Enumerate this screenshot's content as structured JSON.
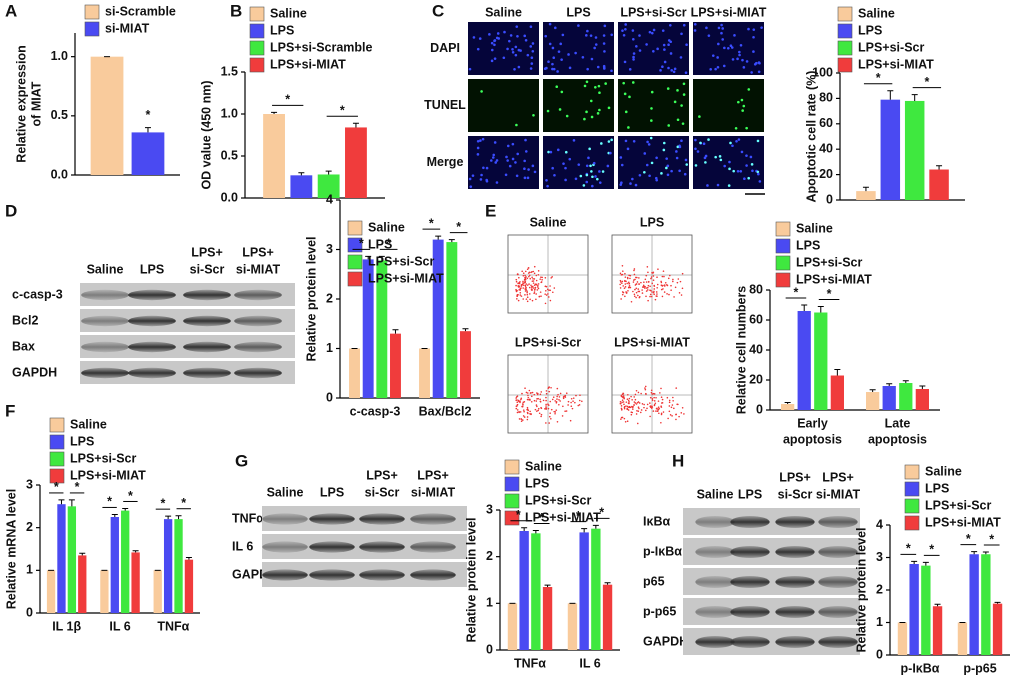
{
  "chart_data": [
    {
      "type": "bar",
      "ylabel": [
        "Relative expression",
        "of MIAT"
      ],
      "categories": [
        null
      ],
      "series": [
        {
          "name": "si-Scramble",
          "color": "#f9cb9c",
          "values": [
            1.0
          ],
          "errors": [
            0.0
          ]
        },
        {
          "name": "si-MIAT",
          "color": "#4a4af2",
          "values": [
            0.36
          ],
          "errors": [
            0.04
          ]
        }
      ],
      "ylim": [
        0,
        1.2
      ],
      "yticks": [
        {
          "value": 0,
          "label": "0.0"
        },
        {
          "value": 0.5,
          "label": "0.5"
        },
        {
          "value": 1,
          "label": "1.0"
        }
      ],
      "comparisons": [
        {
          "label": "*",
          "series": [
            1
          ]
        }
      ]
    },
    {
      "type": "bar",
      "ylabel": "OD value (450 nm)",
      "categories": [
        null
      ],
      "series": [
        {
          "name": "Saline",
          "color": "#f9cb9c",
          "values": [
            1.0
          ],
          "errors": [
            0.02
          ]
        },
        {
          "name": "LPS",
          "color": "#4a4af2",
          "values": [
            0.27
          ],
          "errors": [
            0.03
          ]
        },
        {
          "name": "LPS+si-Scramble",
          "color": "#3fe83f",
          "values": [
            0.28
          ],
          "errors": [
            0.04
          ]
        },
        {
          "name": "LPS+si-MIAT",
          "color": "#f03c3c",
          "values": [
            0.84
          ],
          "errors": [
            0.05
          ]
        }
      ],
      "ylim": [
        0,
        1.5
      ],
      "yticks": [
        {
          "value": 0,
          "label": "0.0"
        },
        {
          "value": 0.5,
          "label": "0.5"
        },
        {
          "value": 1,
          "label": "1.0"
        },
        {
          "value": 1.5,
          "label": "1.5"
        }
      ],
      "comparisons": [
        {
          "label": "*",
          "series": [
            0,
            1
          ]
        },
        {
          "label": "*",
          "series": [
            2,
            3
          ]
        }
      ]
    },
    {
      "type": "bar",
      "ylabel": "Apoptotic cell rate (%)",
      "categories": [
        null
      ],
      "series": [
        {
          "name": "Saline",
          "color": "#f9cb9c",
          "values": [
            7
          ],
          "errors": [
            3
          ]
        },
        {
          "name": "LPS",
          "color": "#4a4af2",
          "values": [
            79
          ],
          "errors": [
            7
          ]
        },
        {
          "name": "LPS+si-Scr",
          "color": "#3fe83f",
          "values": [
            78
          ],
          "errors": [
            5
          ]
        },
        {
          "name": "LPS+si-MIAT",
          "color": "#f03c3c",
          "values": [
            24
          ],
          "errors": [
            3
          ]
        }
      ],
      "ylim": [
        0,
        100
      ],
      "yticks": [
        0,
        20,
        40,
        60,
        80,
        100
      ],
      "comparisons": [
        {
          "label": "*",
          "series": [
            0,
            1
          ]
        },
        {
          "label": "*",
          "series": [
            2,
            3
          ]
        }
      ]
    },
    {
      "type": "bar",
      "ylabel": "Relative protein level",
      "categories": [
        [
          "c-casp-3"
        ],
        [
          "Bax/Bcl2"
        ]
      ],
      "series": [
        {
          "name": "Saline",
          "color": "#f9cb9c",
          "values": [
            1,
            1
          ],
          "errors": [
            0,
            0
          ]
        },
        {
          "name": "LPS",
          "color": "#4a4af2",
          "values": [
            2.8,
            3.2
          ],
          "errors": [
            0.06,
            0.07
          ]
        },
        {
          "name": "LPS+si-Scr",
          "color": "#3fe83f",
          "values": [
            2.78,
            3.15
          ],
          "errors": [
            0.08,
            0.05
          ]
        },
        {
          "name": "LPS+si-MIAT",
          "color": "#f03c3c",
          "values": [
            1.3,
            1.35
          ],
          "errors": [
            0.08,
            0.05
          ]
        }
      ],
      "ylim": [
        0,
        4
      ],
      "yticks": [
        0,
        1,
        2,
        3,
        4
      ],
      "comparisons": [
        {
          "label": "*",
          "series": [
            0,
            1
          ]
        },
        {
          "label": "*",
          "series": [
            2,
            3
          ]
        }
      ]
    },
    {
      "type": "bar",
      "ylabel": "Relative cell numbers",
      "categories": [
        [
          "Early",
          "apoptosis"
        ],
        [
          "Late",
          "apoptosis"
        ]
      ],
      "series": [
        {
          "name": "Saline",
          "color": "#f9cb9c",
          "values": [
            4,
            12
          ],
          "errors": [
            1,
            1.5
          ]
        },
        {
          "name": "LPS",
          "color": "#4a4af2",
          "values": [
            66,
            16
          ],
          "errors": [
            4,
            1.5
          ]
        },
        {
          "name": "LPS+si-Scr",
          "color": "#3fe83f",
          "values": [
            65,
            18
          ],
          "errors": [
            4,
            1.5
          ]
        },
        {
          "name": "LPS+si-MIAT",
          "color": "#f03c3c",
          "values": [
            23,
            14
          ],
          "errors": [
            4,
            2
          ]
        }
      ],
      "ylim": [
        0,
        80
      ],
      "yticks": [
        0,
        20,
        40,
        60,
        80
      ],
      "comparisons": [
        {
          "label": "*",
          "series": [
            0,
            1
          ]
        },
        {
          "label": "*",
          "series": [
            2,
            3
          ]
        }
      ],
      "comparison_categories": [
        0
      ]
    },
    {
      "type": "bar",
      "ylabel": "Relative mRNA level",
      "categories": [
        [
          "IL 1β"
        ],
        [
          "IL 6"
        ],
        [
          "TNFα"
        ]
      ],
      "series": [
        {
          "name": "Saline",
          "color": "#f9cb9c",
          "values": [
            1,
            1,
            1
          ],
          "errors": [
            0,
            0,
            0
          ]
        },
        {
          "name": "LPS",
          "color": "#4a4af2",
          "values": [
            2.55,
            2.25,
            2.2
          ],
          "errors": [
            0.1,
            0.06,
            0.07
          ]
        },
        {
          "name": "LPS+si-Scr",
          "color": "#3fe83f",
          "values": [
            2.5,
            2.4,
            2.2
          ],
          "errors": [
            0.15,
            0.05,
            0.08
          ]
        },
        {
          "name": "LPS+si-MIAT",
          "color": "#f03c3c",
          "values": [
            1.35,
            1.42,
            1.25
          ],
          "errors": [
            0.05,
            0.04,
            0.05
          ]
        }
      ],
      "ylim": [
        0,
        3
      ],
      "yticks": [
        0,
        1,
        2,
        3
      ],
      "comparisons": [
        {
          "label": "*",
          "series": [
            0,
            1
          ]
        },
        {
          "label": "*",
          "series": [
            2,
            3
          ]
        }
      ]
    },
    {
      "type": "bar",
      "ylabel": "Relative protein level",
      "categories": [
        [
          "TNFα"
        ],
        [
          "IL 6"
        ]
      ],
      "series": [
        {
          "name": "Saline",
          "color": "#f9cb9c",
          "values": [
            1,
            1
          ],
          "errors": [
            0,
            0
          ]
        },
        {
          "name": "LPS",
          "color": "#4a4af2",
          "values": [
            2.55,
            2.52
          ],
          "errors": [
            0.07,
            0.08
          ]
        },
        {
          "name": "LPS+si-Scr",
          "color": "#3fe83f",
          "values": [
            2.5,
            2.6
          ],
          "errors": [
            0.06,
            0.07
          ]
        },
        {
          "name": "LPS+si-MIAT",
          "color": "#f03c3c",
          "values": [
            1.35,
            1.4
          ],
          "errors": [
            0.04,
            0.04
          ]
        }
      ],
      "ylim": [
        0,
        3
      ],
      "yticks": [
        0,
        1,
        2,
        3
      ],
      "comparisons": [
        {
          "label": "*",
          "series": [
            0,
            1
          ]
        },
        {
          "label": "*",
          "series": [
            2,
            3
          ]
        }
      ]
    },
    {
      "type": "bar",
      "ylabel": "Relative protein level",
      "categories": [
        [
          "p-IκBα"
        ],
        [
          "p-p65"
        ]
      ],
      "series": [
        {
          "name": "Saline",
          "color": "#f9cb9c",
          "values": [
            1,
            1
          ],
          "errors": [
            0,
            0
          ]
        },
        {
          "name": "LPS",
          "color": "#4a4af2",
          "values": [
            2.8,
            3.1
          ],
          "errors": [
            0.08,
            0.08
          ]
        },
        {
          "name": "LPS+si-Scr",
          "color": "#3fe83f",
          "values": [
            2.75,
            3.1
          ],
          "errors": [
            0.1,
            0.07
          ]
        },
        {
          "name": "LPS+si-MIAT",
          "color": "#f03c3c",
          "values": [
            1.5,
            1.58
          ],
          "errors": [
            0.06,
            0.04
          ]
        }
      ],
      "ylim": [
        0,
        4
      ],
      "yticks": [
        0,
        1,
        2,
        3,
        4
      ],
      "comparisons": [
        {
          "label": "*",
          "series": [
            0,
            1
          ]
        },
        {
          "label": "*",
          "series": [
            2,
            3
          ]
        }
      ]
    }
  ],
  "figure": {
    "panel_letters": [
      "A",
      "B",
      "C",
      "D",
      "E",
      "F",
      "G",
      "H"
    ],
    "microscopy": {
      "columns": [
        "Saline",
        "LPS",
        "LPS+si-Scr",
        "LPS+si-MIAT"
      ],
      "rows": [
        "DAPI",
        "TUNEL",
        "Merge"
      ]
    },
    "flow": {
      "labels": [
        "Saline",
        "LPS",
        "LPS+si-Scr",
        "LPS+si-MIAT"
      ]
    },
    "blot_d": {
      "columns": [
        [
          "Saline"
        ],
        [
          "LPS"
        ],
        [
          "LPS+",
          "si-Scr"
        ],
        [
          "LPS+",
          "si-MIAT"
        ]
      ],
      "rows": [
        "c-casp-3",
        "Bcl2",
        "Bax",
        "GAPDH"
      ]
    },
    "blot_g": {
      "columns": [
        [
          "Saline"
        ],
        [
          "LPS"
        ],
        [
          "LPS+",
          "si-Scr"
        ],
        [
          "LPS+",
          "si-MIAT"
        ]
      ],
      "rows": [
        "TNFα",
        "IL 6",
        "GAPDH"
      ]
    },
    "blot_h": {
      "columns": [
        [
          "Saline"
        ],
        [
          "LPS"
        ],
        [
          "LPS+",
          "si-Scr"
        ],
        [
          "LPS+",
          "si-MIAT"
        ]
      ],
      "rows": [
        "IκBα",
        "p-IκBα",
        "p65",
        "p-p65",
        "GAPDH"
      ]
    }
  }
}
